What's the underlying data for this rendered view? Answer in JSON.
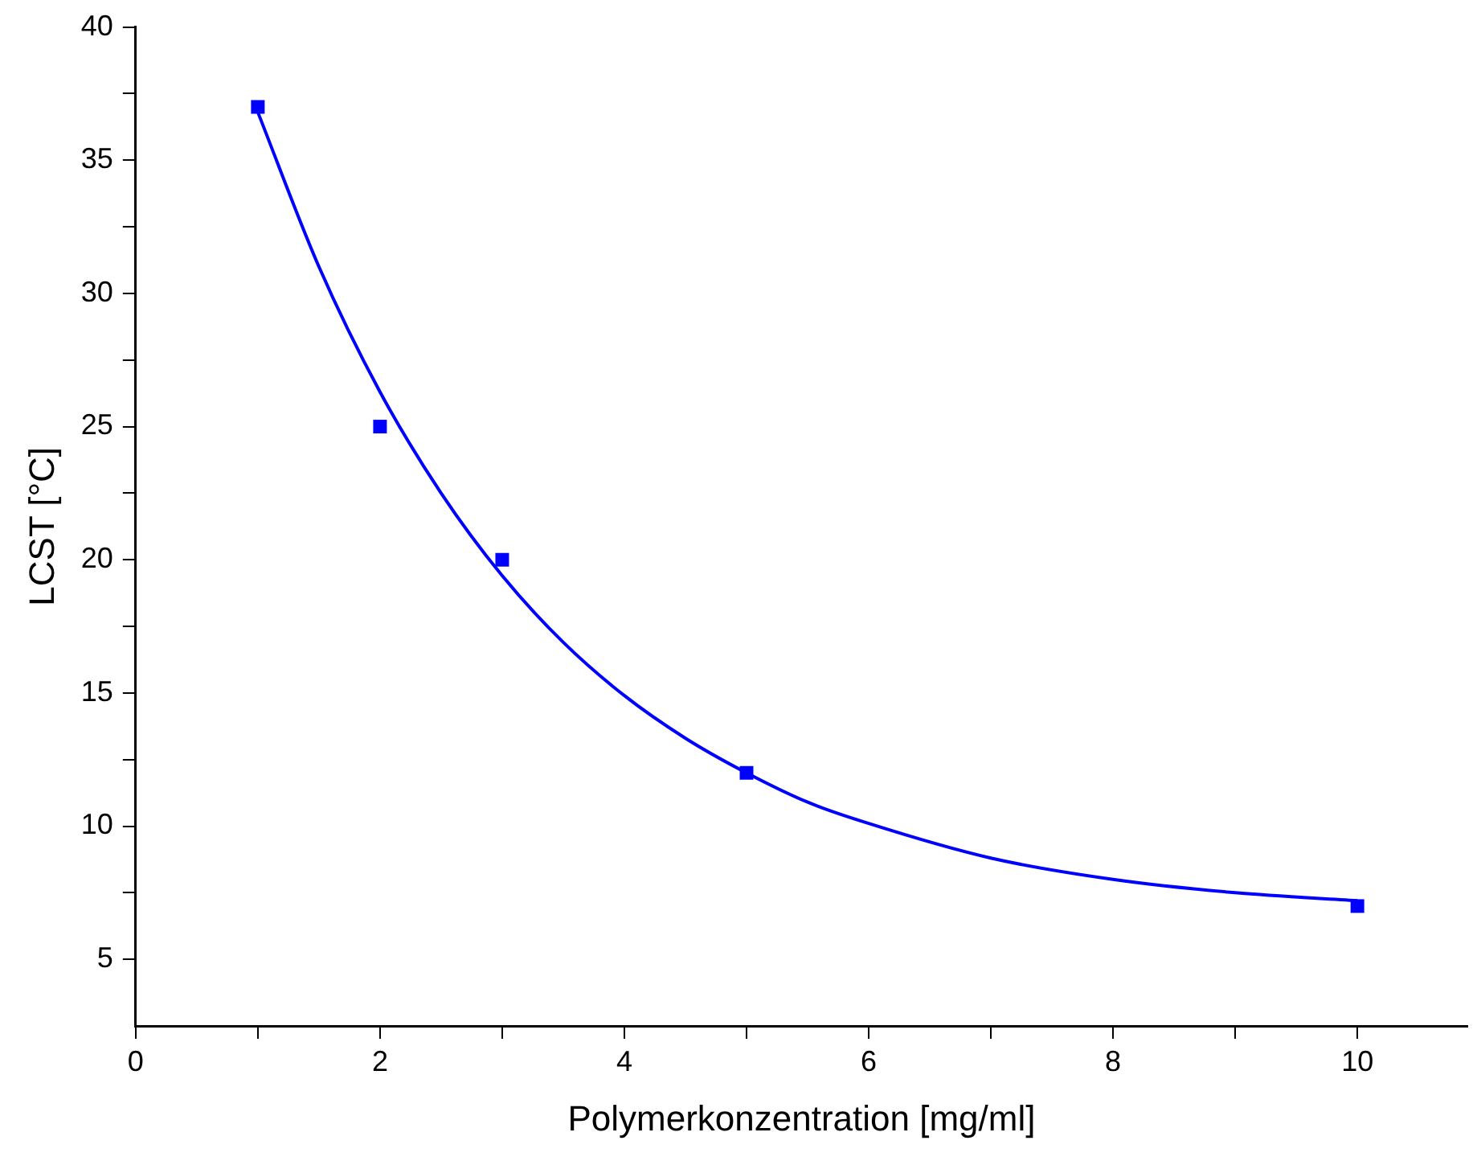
{
  "chart_data": {
    "type": "scatter",
    "xlabel": "Polymerkonzentration [mg/ml]",
    "ylabel": "LCST [°C]",
    "xlim": [
      0,
      10.9
    ],
    "xticks": [
      0,
      {
        "value": 1,
        "label": null
      },
      2,
      {
        "value": 3,
        "label": null
      },
      4,
      {
        "value": 5,
        "label": null
      },
      6,
      {
        "value": 7,
        "label": null
      },
      8,
      {
        "value": 9,
        "label": null
      },
      10
    ],
    "ylim": [
      2.5,
      40
    ],
    "yticks": [
      5,
      {
        "value": 7.5,
        "label": null
      },
      10,
      {
        "value": 12.5,
        "label": null
      },
      15,
      {
        "value": 17.5,
        "label": null
      },
      20,
      {
        "value": 22.5,
        "label": null
      },
      25,
      {
        "value": 27.5,
        "label": null
      },
      30,
      {
        "value": 32.5,
        "label": null
      },
      35,
      {
        "value": 37.5,
        "label": null
      },
      40
    ],
    "grid": false,
    "legend": false,
    "series": [
      {
        "type": "scatter",
        "color": "#0000ff",
        "marker": "square",
        "x": [
          1,
          2,
          3,
          5,
          10
        ],
        "values": [
          37,
          25,
          20,
          12,
          7
        ]
      },
      {
        "type": "line",
        "color": "#0000ff",
        "marker": "none",
        "line_style": "solid",
        "x": [
          1,
          1.5,
          2,
          2.5,
          3,
          3.5,
          4,
          4.5,
          5,
          5.5,
          6,
          7,
          8,
          9,
          10
        ],
        "values": [
          36.8,
          31.0,
          26.3,
          22.5,
          19.4,
          16.9,
          14.9,
          13.3,
          12.0,
          10.9,
          10.1,
          8.8,
          8.0,
          7.5,
          7.2
        ]
      }
    ]
  }
}
